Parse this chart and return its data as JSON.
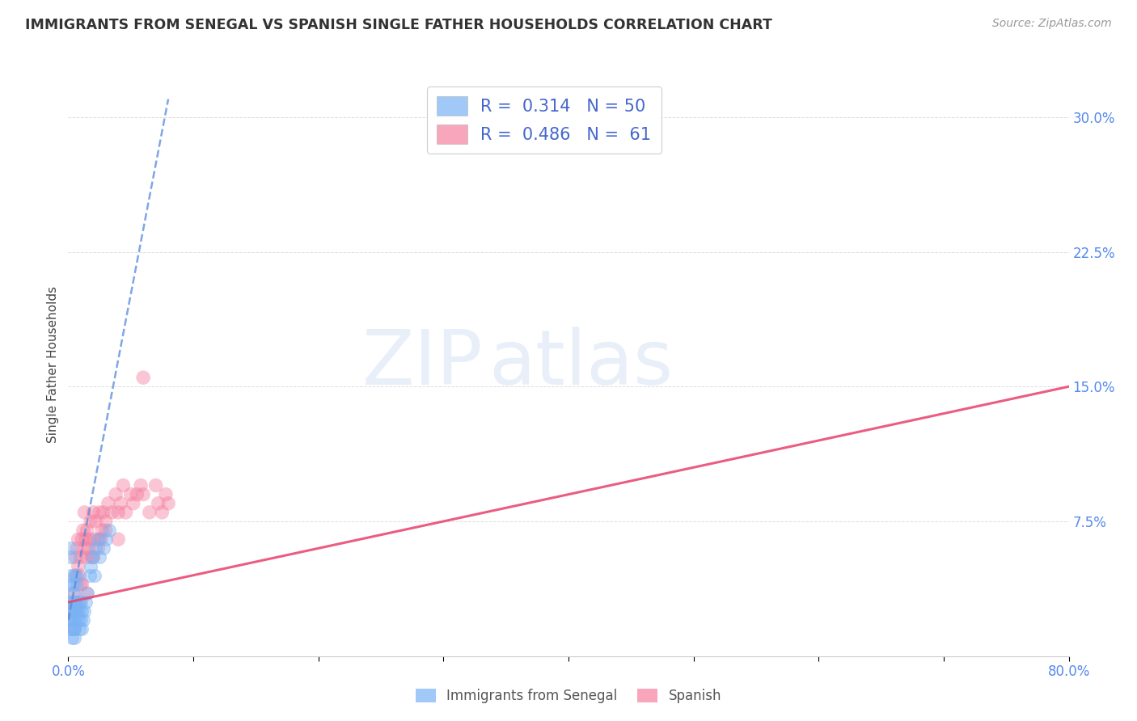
{
  "title": "IMMIGRANTS FROM SENEGAL VS SPANISH SINGLE FATHER HOUSEHOLDS CORRELATION CHART",
  "source": "Source: ZipAtlas.com",
  "ylabel": "Single Father Households",
  "legend_label1": "Immigrants from Senegal",
  "legend_label2": "Spanish",
  "R1": "0.314",
  "N1": "50",
  "R2": "0.486",
  "N2": "61",
  "blue_color": "#7ab3f5",
  "pink_color": "#f580a0",
  "blue_line_color": "#5588dd",
  "pink_line_color": "#e8406a",
  "watermark_zip": "ZIP",
  "watermark_atlas": "atlas",
  "blue_scatter_x": [
    0.001,
    0.001,
    0.001,
    0.001,
    0.002,
    0.002,
    0.002,
    0.002,
    0.002,
    0.003,
    0.003,
    0.003,
    0.003,
    0.004,
    0.004,
    0.004,
    0.004,
    0.005,
    0.005,
    0.005,
    0.005,
    0.005,
    0.006,
    0.006,
    0.006,
    0.007,
    0.007,
    0.007,
    0.008,
    0.008,
    0.009,
    0.009,
    0.01,
    0.01,
    0.011,
    0.011,
    0.012,
    0.013,
    0.014,
    0.015,
    0.017,
    0.018,
    0.02,
    0.021,
    0.022,
    0.024,
    0.025,
    0.028,
    0.03,
    0.033
  ],
  "blue_scatter_y": [
    0.02,
    0.025,
    0.03,
    0.015,
    0.03,
    0.04,
    0.045,
    0.055,
    0.06,
    0.025,
    0.015,
    0.02,
    0.01,
    0.035,
    0.04,
    0.02,
    0.015,
    0.025,
    0.03,
    0.045,
    0.015,
    0.01,
    0.025,
    0.03,
    0.02,
    0.04,
    0.045,
    0.025,
    0.03,
    0.02,
    0.025,
    0.015,
    0.02,
    0.03,
    0.025,
    0.015,
    0.02,
    0.025,
    0.03,
    0.035,
    0.045,
    0.05,
    0.055,
    0.045,
    0.06,
    0.065,
    0.055,
    0.06,
    0.065,
    0.07
  ],
  "pink_scatter_x": [
    0.002,
    0.003,
    0.004,
    0.005,
    0.006,
    0.006,
    0.007,
    0.008,
    0.008,
    0.009,
    0.01,
    0.01,
    0.011,
    0.012,
    0.013,
    0.013,
    0.014,
    0.015,
    0.015,
    0.016,
    0.017,
    0.018,
    0.019,
    0.02,
    0.021,
    0.022,
    0.024,
    0.025,
    0.026,
    0.027,
    0.028,
    0.03,
    0.032,
    0.035,
    0.038,
    0.04,
    0.042,
    0.044,
    0.046,
    0.05,
    0.052,
    0.055,
    0.058,
    0.06,
    0.065,
    0.07,
    0.072,
    0.075,
    0.078,
    0.08,
    0.003,
    0.005,
    0.007,
    0.009,
    0.011,
    0.015,
    0.02,
    0.025,
    0.03,
    0.04,
    0.06
  ],
  "pink_scatter_y": [
    0.025,
    0.02,
    0.035,
    0.03,
    0.055,
    0.045,
    0.06,
    0.05,
    0.065,
    0.045,
    0.055,
    0.04,
    0.065,
    0.07,
    0.08,
    0.06,
    0.065,
    0.055,
    0.07,
    0.06,
    0.065,
    0.075,
    0.055,
    0.08,
    0.065,
    0.075,
    0.06,
    0.08,
    0.065,
    0.07,
    0.08,
    0.075,
    0.085,
    0.08,
    0.09,
    0.08,
    0.085,
    0.095,
    0.08,
    0.09,
    0.085,
    0.09,
    0.095,
    0.09,
    0.08,
    0.095,
    0.085,
    0.08,
    0.09,
    0.085,
    0.025,
    0.015,
    0.025,
    0.03,
    0.04,
    0.035,
    0.055,
    0.065,
    0.07,
    0.065,
    0.155
  ],
  "xlim": [
    0.0,
    0.8
  ],
  "ylim": [
    0.0,
    0.325
  ],
  "x_ticks": [
    0.0,
    0.1,
    0.2,
    0.3,
    0.4,
    0.5,
    0.6,
    0.7,
    0.8
  ],
  "y_ticks_right": [
    0.075,
    0.15,
    0.225,
    0.3
  ],
  "blue_trend_x": [
    0.0,
    0.08
  ],
  "blue_trend_y": [
    0.02,
    0.31
  ],
  "pink_trend_x": [
    0.0,
    0.8
  ],
  "pink_trend_y": [
    0.03,
    0.15
  ]
}
